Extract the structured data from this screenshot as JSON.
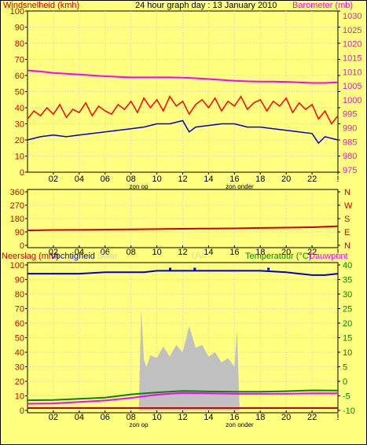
{
  "header": {
    "title": "24 hour graph day : 13 January 2010",
    "left_label": "Windsnelheid (kmh)",
    "right_label": "Barometer (mb)"
  },
  "middle_panel": {
    "compass_labels": [
      "N",
      "W",
      "S",
      "E",
      "N"
    ]
  },
  "bottom_panel": {
    "label_rain": "Neerslag (mm)",
    "label_humidity": "Vochtigheid",
    "label_solar": "Solar",
    "label_uv": "UV",
    "label_temperature": "Temperatuur (°C)",
    "label_dewpoint": "Dauwpunt"
  },
  "time_axis": {
    "ticks": [
      "02",
      "04",
      "06",
      "08",
      "10",
      "12",
      "14",
      "16",
      "18",
      "20",
      "22",
      "!"
    ],
    "sunrise_label": "zon op",
    "sunset_label": "zon onder"
  },
  "colors": {
    "background": "#ffff80",
    "wind": "#ff0000",
    "gust_wind": "#ff0000",
    "wind_avg": "#0000cc",
    "barometer": "#ff00ff",
    "direction": "#cc0000",
    "humidity": "#0000cc",
    "temperature": "#008800",
    "dewpoint": "#ff00ff",
    "solar": "#c0c0c0",
    "rain": "#cc0000",
    "axis_left": "#cc0000",
    "axis_right_baro": "#ff00ff",
    "axis_right_temp": "#008800",
    "axis_right_dir": "#cc0000"
  },
  "chart_data": [
    {
      "type": "line",
      "name": "wind-barometer",
      "y_left": {
        "label": "Windsnelheid (kmh)",
        "ticks": [
          "0",
          "10",
          "20",
          "30",
          "40",
          "50",
          "60",
          "70",
          "80",
          "90",
          "100"
        ],
        "range": [
          0,
          100
        ]
      },
      "y_right": {
        "label": "Barometer (mb)",
        "ticks": [
          "975",
          "980",
          "985",
          "990",
          "995",
          "1000",
          "1005",
          "1010",
          "1015",
          "1020",
          "1025",
          "1030"
        ],
        "range": [
          975,
          1030
        ]
      },
      "x_range_hours": [
        0,
        24
      ],
      "series": [
        {
          "name": "Barometer",
          "axis": "right",
          "x": [
            0,
            1,
            2,
            3,
            4,
            5,
            6,
            7,
            8,
            9,
            10,
            11,
            12,
            13,
            14,
            15,
            16,
            17,
            18,
            19,
            20,
            21,
            22,
            23,
            24
          ],
          "values": [
            1010.5,
            1010.1,
            1009.6,
            1009.3,
            1009.0,
            1008.7,
            1008.4,
            1008.2,
            1008.0,
            1008.0,
            1008.0,
            1008.0,
            1007.9,
            1007.7,
            1007.4,
            1007.1,
            1006.8,
            1006.6,
            1006.5,
            1006.5,
            1006.4,
            1006.2,
            1006.0,
            1006.0,
            1006.2
          ]
        },
        {
          "name": "Windsnelheid",
          "axis": "left",
          "x": [
            0,
            0.5,
            1,
            1.5,
            2,
            2.5,
            3,
            3.5,
            4,
            4.5,
            5,
            5.5,
            6,
            6.5,
            7,
            7.5,
            8,
            8.5,
            9,
            9.5,
            10,
            10.5,
            11,
            11.5,
            12,
            12.5,
            13,
            13.5,
            14,
            14.5,
            15,
            15.5,
            16,
            16.5,
            17,
            17.5,
            18,
            18.5,
            19,
            19.5,
            20,
            20.5,
            21,
            21.5,
            22,
            22.5,
            23,
            23.5,
            24
          ],
          "values": [
            33,
            38,
            35,
            40,
            36,
            42,
            34,
            39,
            37,
            43,
            35,
            41,
            38,
            36,
            42,
            39,
            44,
            37,
            46,
            40,
            45,
            38,
            47,
            41,
            44,
            36,
            42,
            45,
            40,
            46,
            38,
            44,
            41,
            47,
            39,
            43,
            45,
            38,
            44,
            41,
            46,
            37,
            43,
            39,
            42,
            33,
            38,
            30,
            35
          ]
        },
        {
          "name": "Windsnelheid gemiddeld",
          "axis": "left",
          "x": [
            0,
            1,
            2,
            3,
            4,
            5,
            6,
            7,
            8,
            9,
            10,
            11,
            12,
            12.5,
            13,
            14,
            15,
            16,
            17,
            18,
            19,
            20,
            21,
            22,
            22.5,
            23,
            24
          ],
          "values": [
            20,
            22,
            23,
            22,
            23,
            24,
            25,
            26,
            27,
            28,
            30,
            30,
            32,
            25,
            28,
            29,
            30,
            30,
            28,
            28,
            27,
            26,
            25,
            24,
            18,
            22,
            20
          ]
        }
      ]
    },
    {
      "type": "line",
      "name": "wind-direction",
      "y_left": {
        "ticks": [
          "0",
          "90",
          "180",
          "270",
          "360"
        ],
        "range": [
          0,
          360
        ]
      },
      "y_right": {
        "ticks": [
          "N",
          "E",
          "S",
          "W",
          "N"
        ]
      },
      "x_range_hours": [
        0,
        24
      ],
      "series": [
        {
          "name": "Windrichting",
          "x": [
            0,
            2,
            4,
            6,
            8,
            10,
            12,
            14,
            16,
            18,
            20,
            22,
            24
          ],
          "values": [
            100,
            103,
            104,
            106,
            107,
            109,
            111,
            113,
            114,
            117,
            119,
            122,
            128
          ]
        }
      ]
    },
    {
      "type": "line",
      "name": "rain-humidity-temperature",
      "y_left": {
        "label": "Neerslag (mm)",
        "ticks": [
          "0",
          "10",
          "20",
          "30",
          "40",
          "50",
          "60",
          "70",
          "80",
          "90",
          "100"
        ],
        "range": [
          0,
          100
        ]
      },
      "y_left_rain": {
        "ticks": [
          "0",
          "1.5",
          "3",
          "4.5",
          "6",
          "7.5",
          "9",
          "10.5",
          "12",
          "13.5",
          "15"
        ]
      },
      "y_right": {
        "label": "Temperatuur (°C)",
        "ticks": [
          "-10",
          "-5",
          "0",
          "5",
          "10",
          "15",
          "20",
          "25",
          "30",
          "35",
          "40"
        ],
        "range": [
          -10,
          40
        ]
      },
      "x_range_hours": [
        0,
        24
      ],
      "sunrise_hour": 8.6,
      "sunset_hour": 16.4,
      "series": [
        {
          "name": "Vochtigheid",
          "axis": "left",
          "x": [
            0,
            2,
            4,
            6,
            8,
            9,
            10,
            11,
            12,
            13,
            14,
            15,
            16,
            18,
            20,
            21,
            22,
            23,
            24
          ],
          "values": [
            94,
            94,
            94,
            95,
            95,
            95,
            96,
            96,
            96,
            96,
            96,
            96,
            96,
            96,
            95,
            94,
            93,
            93,
            94
          ]
        },
        {
          "name": "Temperatuur",
          "axis": "right",
          "x": [
            0,
            2,
            4,
            6,
            8,
            10,
            12,
            14,
            16,
            18,
            20,
            22,
            24
          ],
          "values": [
            -6.5,
            -6.4,
            -6.0,
            -5.6,
            -4.5,
            -3.8,
            -3.3,
            -3.5,
            -3.6,
            -3.6,
            -3.4,
            -3.1,
            -3.2
          ]
        },
        {
          "name": "Dauwpunt",
          "axis": "right",
          "x": [
            0,
            2,
            4,
            6,
            8,
            10,
            12,
            14,
            16,
            18,
            20,
            22,
            24
          ],
          "values": [
            -7.7,
            -7.6,
            -7.1,
            -6.6,
            -5.7,
            -4.6,
            -4.0,
            -4.1,
            -4.3,
            -4.3,
            -4.3,
            -4.1,
            -4.1
          ]
        },
        {
          "name": "Solar",
          "axis": "left",
          "x": [
            8.6,
            8.8,
            9,
            9.2,
            9.5,
            10,
            10.5,
            11,
            11.5,
            12,
            12.5,
            13,
            13.5,
            14,
            14.5,
            15,
            15.5,
            16,
            16.2,
            16.4
          ],
          "values": [
            0,
            70,
            35,
            30,
            38,
            36,
            44,
            37,
            45,
            40,
            58,
            43,
            45,
            37,
            40,
            33,
            36,
            30,
            55,
            0
          ]
        },
        {
          "name": "Neerslag",
          "axis": "left",
          "x": [
            0,
            24
          ],
          "values": [
            0,
            0
          ]
        }
      ]
    }
  ]
}
